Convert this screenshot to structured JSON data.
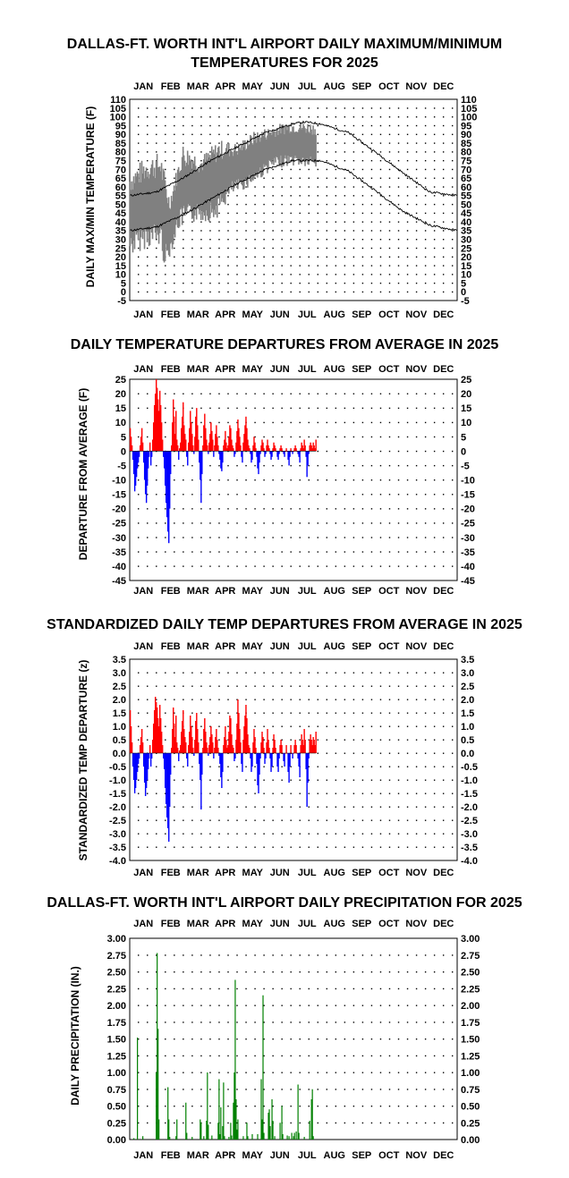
{
  "months": [
    "JAN",
    "FEB",
    "MAR",
    "APR",
    "MAY",
    "JUN",
    "JUL",
    "AUG",
    "SEP",
    "OCT",
    "NOV",
    "DEC"
  ],
  "chart_data": [
    {
      "id": "temps",
      "type": "line",
      "title": [
        "DALLAS-FT. WORTH INT'L AIRPORT DAILY MAXIMUM/MINIMUM",
        "TEMPERATURES FOR 2025"
      ],
      "ylabel": "DAILY MAX/MIN TEMPERATURE (F)",
      "xlabel": "",
      "ylim": [
        -5,
        110
      ],
      "yticks": [
        -5,
        0,
        5,
        10,
        15,
        20,
        25,
        30,
        35,
        40,
        45,
        50,
        55,
        60,
        65,
        70,
        75,
        80,
        85,
        90,
        95,
        100,
        105,
        110
      ],
      "normal_high_points": [
        [
          1,
          55
        ],
        [
          30,
          57
        ],
        [
          60,
          65
        ],
        [
          91,
          75
        ],
        [
          121,
          83
        ],
        [
          152,
          91
        ],
        [
          182,
          96
        ],
        [
          196,
          97
        ],
        [
          213,
          96
        ],
        [
          244,
          91
        ],
        [
          274,
          80
        ],
        [
          305,
          68
        ],
        [
          335,
          57
        ],
        [
          350,
          56
        ],
        [
          365,
          55
        ]
      ],
      "normal_low_points": [
        [
          1,
          35
        ],
        [
          30,
          37
        ],
        [
          60,
          44
        ],
        [
          91,
          53
        ],
        [
          121,
          62
        ],
        [
          152,
          70
        ],
        [
          182,
          75
        ],
        [
          213,
          75
        ],
        [
          244,
          69
        ],
        [
          274,
          58
        ],
        [
          305,
          46
        ],
        [
          335,
          38
        ],
        [
          365,
          35
        ]
      ],
      "observed_max_range": [
        [
          1,
          70
        ],
        [
          20,
          78
        ],
        [
          35,
          80
        ],
        [
          45,
          55
        ],
        [
          60,
          85
        ],
        [
          80,
          78
        ],
        [
          100,
          87
        ],
        [
          120,
          85
        ],
        [
          140,
          92
        ],
        [
          160,
          95
        ],
        [
          180,
          98
        ],
        [
          208,
          97
        ]
      ],
      "observed_min_range": [
        [
          1,
          20
        ],
        [
          20,
          25
        ],
        [
          35,
          25
        ],
        [
          40,
          12
        ],
        [
          55,
          35
        ],
        [
          75,
          40
        ],
        [
          95,
          40
        ],
        [
          115,
          55
        ],
        [
          135,
          60
        ],
        [
          160,
          70
        ],
        [
          180,
          72
        ],
        [
          208,
          70
        ]
      ],
      "observed_through_day": 208,
      "grid": true
    },
    {
      "id": "departures",
      "type": "bar",
      "title": [
        "DAILY TEMPERATURE DEPARTURES FROM AVERAGE IN 2025"
      ],
      "ylabel": "DEPARTURE FROM AVERAGE (F)",
      "xlabel": "",
      "ylim": [
        -45,
        25
      ],
      "yticks": [
        -45,
        -40,
        -35,
        -30,
        -25,
        -20,
        -15,
        -10,
        -5,
        0,
        5,
        10,
        15,
        20,
        25
      ],
      "colors": {
        "positive": "#ff0000",
        "negative": "#0000ff"
      },
      "values_by_day": [
        8,
        5,
        2,
        -3,
        -8,
        -14,
        -12,
        -9,
        -6,
        -4,
        -2,
        2,
        5,
        8,
        3,
        -4,
        -10,
        -15,
        -18,
        -12,
        -6,
        -2,
        3,
        -5,
        -2,
        4,
        10,
        16,
        20,
        25,
        22,
        18,
        14,
        21,
        16,
        10,
        4,
        -2,
        -6,
        -12,
        -18,
        -23,
        -28,
        -32,
        -20,
        -8,
        2,
        10,
        18,
        12,
        6,
        14,
        4,
        2,
        -3,
        1,
        3,
        8,
        12,
        17,
        9,
        6,
        4,
        -2,
        -5,
        3,
        8,
        14,
        10,
        6,
        2,
        -1,
        5,
        12,
        15,
        9,
        4,
        -4,
        -10,
        -18,
        -8,
        2,
        9,
        13,
        8,
        4,
        2,
        -1,
        3,
        6,
        10,
        7,
        4,
        -2,
        2,
        6,
        9,
        5,
        2,
        -1,
        -3,
        -6,
        -7,
        -4,
        2,
        4,
        7,
        3,
        1,
        2,
        5,
        9,
        8,
        4,
        2,
        1,
        -2,
        -1,
        3,
        7,
        11,
        8,
        5,
        2,
        -2,
        -4,
        3,
        6,
        9,
        12,
        8,
        4,
        2,
        1,
        -1,
        -4,
        -3,
        2,
        5,
        3,
        1,
        -2,
        -6,
        -8,
        -4,
        -1,
        2,
        4,
        3,
        1,
        -2,
        -1,
        2,
        4,
        2,
        1,
        -1,
        -3,
        -2,
        1,
        3,
        2,
        1,
        0,
        -2,
        -3,
        -1,
        1,
        2,
        1,
        0,
        -1,
        -2,
        0,
        1,
        0,
        -3,
        -5,
        -2,
        1,
        0,
        -1,
        0,
        1,
        2,
        1,
        0,
        -1,
        -2,
        -4,
        1,
        3,
        2,
        1,
        4,
        2,
        -2,
        -9,
        -5,
        -1,
        2,
        3,
        2,
        1,
        3,
        2,
        1,
        4
      ]
    },
    {
      "id": "standardized",
      "type": "bar",
      "title": [
        "STANDARDIZED DAILY TEMP DEPARTURES FROM AVERAGE IN 2025"
      ],
      "ylabel": "STANDARDIZED TEMP DEPARTURE (z)",
      "xlabel": "",
      "ylim": [
        -4.0,
        3.5
      ],
      "yticks": [
        -4.0,
        -3.5,
        -3.0,
        -2.5,
        -2.0,
        -1.5,
        -1.0,
        -0.5,
        0.0,
        0.5,
        1.0,
        1.5,
        2.0,
        2.5,
        3.0,
        3.5
      ],
      "colors": {
        "positive": "#ff0000",
        "negative": "#0000ff"
      },
      "values_by_day": [
        1.6,
        1.0,
        0.4,
        -0.5,
        -1.0,
        -1.5,
        -1.3,
        -1.0,
        -0.7,
        -0.4,
        -0.2,
        0.3,
        0.6,
        0.9,
        0.4,
        -0.5,
        -1.1,
        -1.6,
        -1.3,
        -1.0,
        -0.6,
        -0.2,
        0.3,
        -0.5,
        -0.2,
        0.5,
        1.1,
        1.6,
        2.1,
        1.9,
        1.7,
        1.3,
        1.0,
        1.8,
        1.3,
        0.8,
        0.3,
        -0.2,
        -0.6,
        -1.3,
        -1.9,
        -2.4,
        -2.8,
        -3.3,
        -2.0,
        -0.8,
        0.2,
        0.9,
        1.7,
        1.1,
        0.6,
        1.4,
        0.4,
        0.2,
        -0.3,
        0.1,
        0.3,
        0.8,
        1.2,
        1.6,
        0.9,
        0.6,
        0.4,
        -0.2,
        -0.5,
        0.3,
        0.8,
        1.4,
        1.0,
        0.6,
        0.2,
        -0.1,
        0.5,
        1.2,
        1.5,
        0.9,
        0.4,
        -0.4,
        -1.0,
        -2.1,
        -0.8,
        0.2,
        0.9,
        1.3,
        0.8,
        0.4,
        0.2,
        -0.1,
        0.3,
        0.6,
        1.0,
        0.7,
        0.4,
        -0.2,
        0.2,
        0.6,
        0.9,
        0.5,
        0.2,
        -0.1,
        -0.4,
        -0.9,
        -1.3,
        -0.7,
        0.3,
        0.6,
        1.0,
        0.5,
        0.2,
        0.3,
        0.8,
        1.4,
        1.3,
        0.7,
        0.3,
        0.2,
        -0.3,
        -0.2,
        0.5,
        1.1,
        2.0,
        1.5,
        0.9,
        0.4,
        -0.4,
        -0.7,
        0.5,
        1.0,
        1.4,
        1.8,
        1.3,
        0.7,
        0.3,
        0.2,
        -0.2,
        -0.7,
        -0.5,
        0.4,
        0.9,
        0.6,
        0.2,
        -0.4,
        -1.2,
        -1.5,
        -0.8,
        -0.2,
        0.4,
        0.8,
        0.6,
        0.2,
        -0.4,
        -0.2,
        0.4,
        0.9,
        0.5,
        0.2,
        -0.2,
        -0.7,
        -0.5,
        0.2,
        0.7,
        0.5,
        0.2,
        0.0,
        -0.5,
        -0.7,
        -0.2,
        0.3,
        0.5,
        0.3,
        0.0,
        -0.3,
        -0.5,
        0.0,
        0.3,
        0.0,
        -0.7,
        -1.1,
        -0.5,
        0.3,
        0.0,
        -0.2,
        0.0,
        0.3,
        0.5,
        0.3,
        0.0,
        -0.2,
        -0.5,
        -0.9,
        0.3,
        0.7,
        0.5,
        0.3,
        0.9,
        0.5,
        -0.6,
        -2.0,
        -1.1,
        -0.2,
        0.5,
        0.7,
        0.5,
        0.3,
        0.6,
        0.5,
        0.3,
        0.8
      ]
    },
    {
      "id": "precip",
      "type": "bar",
      "title": [
        "DALLAS-FT. WORTH INT'L AIRPORT DAILY PRECIPITATION FOR 2025"
      ],
      "ylabel": "DAILY PRECIPITATION (IN.)",
      "xlabel": "",
      "ylim": [
        0.0,
        3.0
      ],
      "yticks": [
        0.0,
        0.25,
        0.5,
        0.75,
        1.0,
        1.25,
        1.5,
        1.75,
        2.0,
        2.25,
        2.5,
        2.75,
        3.0
      ],
      "colors": {
        "bar": "#008000"
      },
      "events": [
        [
          5,
          0.02
        ],
        [
          9,
          1.52
        ],
        [
          15,
          0.05
        ],
        [
          30,
          1.0
        ],
        [
          31,
          2.78
        ],
        [
          32,
          1.65
        ],
        [
          33,
          0.3
        ],
        [
          43,
          0.78
        ],
        [
          44,
          0.3
        ],
        [
          45,
          0.04
        ],
        [
          52,
          0.05
        ],
        [
          53,
          0.3
        ],
        [
          63,
          0.55
        ],
        [
          64,
          0.1
        ],
        [
          70,
          0.04
        ],
        [
          79,
          0.3
        ],
        [
          80,
          0.25
        ],
        [
          83,
          0.05
        ],
        [
          86,
          0.28
        ],
        [
          87,
          1.0
        ],
        [
          88,
          0.22
        ],
        [
          92,
          0.06
        ],
        [
          99,
          0.25
        ],
        [
          100,
          0.9
        ],
        [
          101,
          0.08
        ],
        [
          102,
          0.48
        ],
        [
          104,
          0.2
        ],
        [
          105,
          0.85
        ],
        [
          106,
          0.05
        ],
        [
          111,
          0.04
        ],
        [
          113,
          0.25
        ],
        [
          114,
          0.06
        ],
        [
          116,
          0.55
        ],
        [
          117,
          1.0
        ],
        [
          118,
          2.38
        ],
        [
          119,
          0.6
        ],
        [
          120,
          0.15
        ],
        [
          121,
          0.3
        ],
        [
          127,
          0.05
        ],
        [
          131,
          0.25
        ],
        [
          132,
          0.05
        ],
        [
          137,
          0.08
        ],
        [
          143,
          0.08
        ],
        [
          147,
          0.9
        ],
        [
          148,
          0.3
        ],
        [
          149,
          2.15
        ],
        [
          150,
          0.1
        ],
        [
          155,
          0.4
        ],
        [
          156,
          0.45
        ],
        [
          157,
          0.2
        ],
        [
          159,
          0.6
        ],
        [
          160,
          0.28
        ],
        [
          162,
          0.05
        ],
        [
          168,
          0.25
        ],
        [
          170,
          0.5
        ],
        [
          171,
          0.08
        ],
        [
          176,
          0.06
        ],
        [
          178,
          0.05
        ],
        [
          181,
          0.1
        ],
        [
          183,
          0.05
        ],
        [
          184,
          0.1
        ],
        [
          186,
          0.12
        ],
        [
          188,
          0.82
        ],
        [
          189,
          0.1
        ],
        [
          195,
          0.04
        ],
        [
          201,
          0.28
        ],
        [
          203,
          0.6
        ],
        [
          204,
          0.75
        ],
        [
          205,
          0.05
        ]
      ]
    }
  ]
}
